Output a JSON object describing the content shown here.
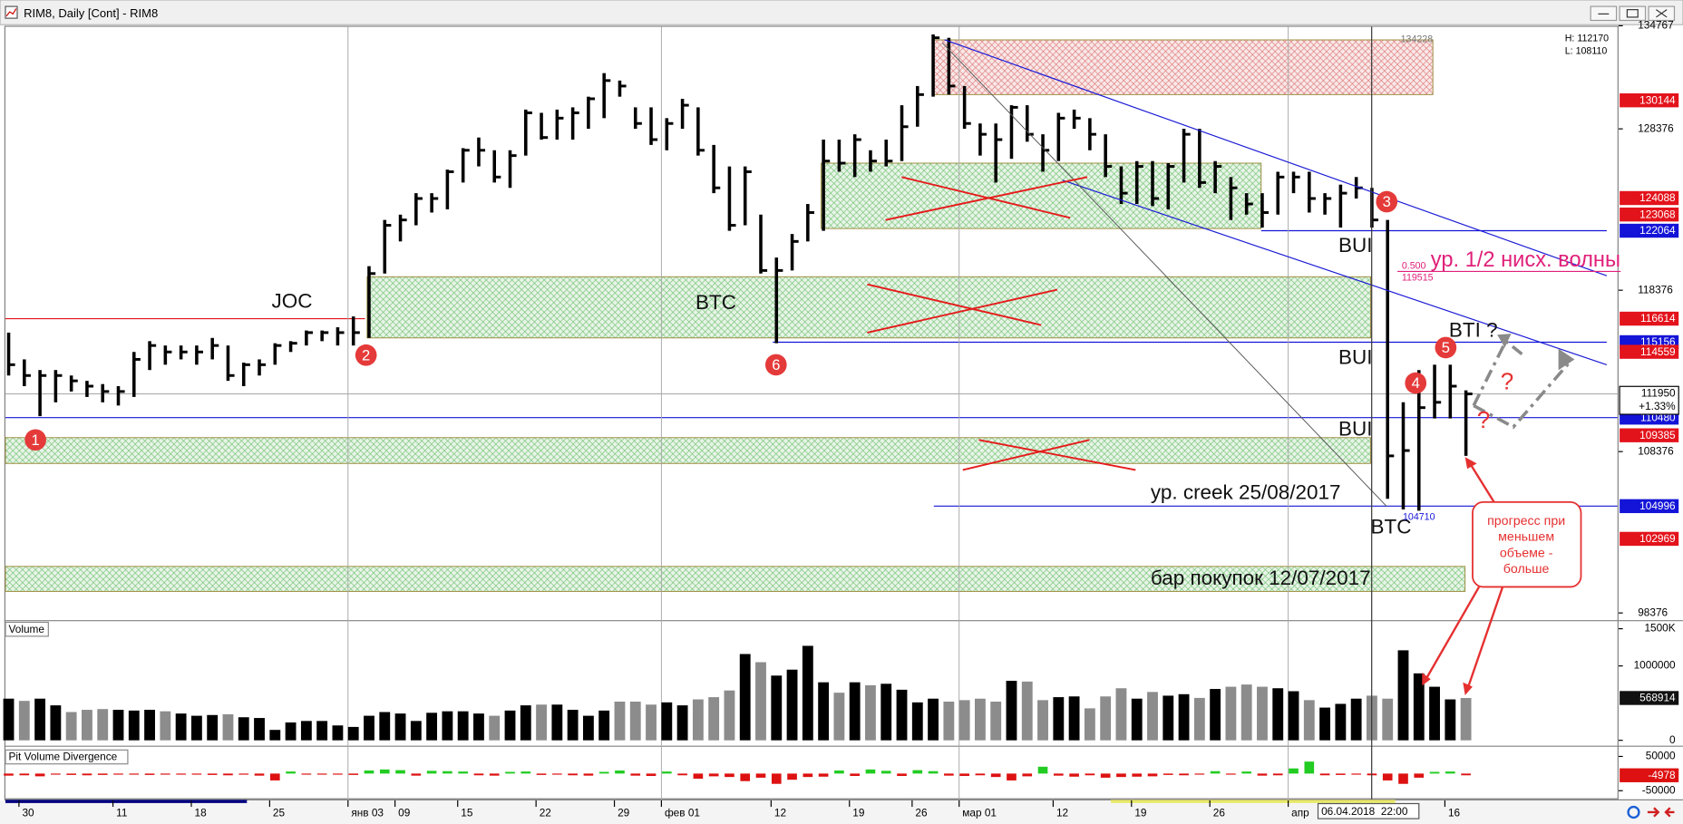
{
  "window_title": "RIM8, Daily [Cont] - RIM8",
  "cursor_time": "06.04.2018  22:00",
  "chart_data": [
    {
      "type": "ohlc",
      "categories": [
        null,
        "30",
        null,
        null,
        null,
        null,
        null,
        "11",
        null,
        null,
        null,
        null,
        "18",
        null,
        null,
        null,
        null,
        "25",
        null,
        null,
        null,
        null,
        "янв 03",
        null,
        null,
        "09",
        null,
        null,
        null,
        "15",
        null,
        null,
        null,
        null,
        "22",
        null,
        null,
        null,
        null,
        "29",
        null,
        null,
        "фев 01",
        null,
        null,
        null,
        null,
        null,
        null,
        "12",
        null,
        null,
        null,
        null,
        "19",
        null,
        null,
        null,
        "26",
        null,
        null,
        "мар 01",
        null,
        null,
        null,
        null,
        null,
        "12",
        null,
        null,
        null,
        null,
        "19",
        null,
        null,
        null,
        null,
        "26",
        null,
        null,
        null,
        null,
        "апр",
        null,
        null,
        null,
        null,
        null,
        null,
        null,
        null,
        null,
        "16",
        null
      ],
      "high": [
        115750,
        114090,
        113430,
        113430,
        113090,
        112760,
        112560,
        112430,
        114550,
        115220,
        114950,
        114950,
        114950,
        115420,
        114950,
        113890,
        114090,
        115090,
        115220,
        115880,
        115880,
        116080,
        116750,
        119870,
        122730,
        123060,
        124390,
        124390,
        125850,
        127180,
        127840,
        127050,
        127050,
        129570,
        129370,
        129570,
        129710,
        130370,
        131830,
        131370,
        129710,
        129710,
        129040,
        130240,
        129710,
        127380,
        126050,
        126050,
        123060,
        120400,
        121860,
        123720,
        127710,
        127710,
        128040,
        127050,
        127710,
        129840,
        131030,
        134228,
        134020,
        131030,
        128710,
        128710,
        129840,
        129840,
        128040,
        129370,
        129570,
        129040,
        128040,
        126050,
        126380,
        126380,
        126250,
        128380,
        128380,
        126380,
        125390,
        124390,
        124390,
        125720,
        125720,
        125720,
        124390,
        124920,
        125390,
        124720,
        122730,
        111430,
        113430,
        113760,
        113760,
        112170
      ],
      "low": [
        113090,
        112430,
        110570,
        111430,
        112100,
        111760,
        111430,
        111230,
        111760,
        113430,
        113760,
        114090,
        113760,
        114090,
        112760,
        112430,
        113090,
        113760,
        114550,
        114950,
        115220,
        114950,
        114950,
        115420,
        119410,
        121400,
        122400,
        123190,
        123390,
        125050,
        126050,
        125050,
        124720,
        126720,
        127710,
        127710,
        127710,
        128380,
        129040,
        130370,
        128380,
        127380,
        127050,
        128380,
        126720,
        124390,
        122060,
        122400,
        119410,
        115090,
        119600,
        121400,
        122060,
        125720,
        125390,
        125720,
        126050,
        126380,
        128510,
        130370,
        130500,
        128380,
        126720,
        125050,
        126520,
        127580,
        125720,
        126380,
        128380,
        127050,
        125390,
        123720,
        123720,
        123590,
        123390,
        125050,
        124720,
        124390,
        122730,
        123060,
        122260,
        123060,
        124390,
        123190,
        123060,
        122260,
        124060,
        122260,
        105450,
        104790,
        104710,
        110430,
        110430,
        108110
      ],
      "close": [
        113760,
        113090,
        113090,
        113090,
        112760,
        112430,
        112100,
        112100,
        114090,
        114950,
        114550,
        114550,
        114550,
        114950,
        113090,
        113760,
        113760,
        114950,
        115090,
        115750,
        115750,
        115750,
        115750,
        119410,
        122400,
        122730,
        124060,
        124060,
        125720,
        127050,
        127050,
        125390,
        126720,
        129370,
        127840,
        129040,
        129370,
        130240,
        131370,
        131030,
        128710,
        127710,
        128710,
        129840,
        127050,
        124720,
        122400,
        125720,
        119600,
        119600,
        121400,
        123190,
        126380,
        126250,
        127710,
        126380,
        126380,
        128510,
        130500,
        134020,
        131030,
        128710,
        128040,
        127710,
        129710,
        128040,
        127050,
        129040,
        129040,
        128040,
        126050,
        124390,
        126050,
        124060,
        126050,
        128040,
        125050,
        126050,
        124720,
        123720,
        123190,
        125390,
        125390,
        124060,
        124060,
        124390,
        124720,
        122730,
        108110,
        108440,
        111100,
        111430,
        112430,
        111950
      ],
      "color": "#000000",
      "ylim": [
        97930,
        134700
      ],
      "yticks": [
        98376,
        108376,
        118376,
        128376,
        134767
      ],
      "price_levels": [
        {
          "value": 130144,
          "color": "#e3131b"
        },
        {
          "value": 124088,
          "color": "#e3131b"
        },
        {
          "value": 123068,
          "color": "#e3131b"
        },
        {
          "value": 122064,
          "color": "#1414d8"
        },
        {
          "value": 116614,
          "color": "#e3131b"
        },
        {
          "value": 115156,
          "color": "#1414d8"
        },
        {
          "value": 114559,
          "color": "#e3131b"
        },
        {
          "value": 110480,
          "color": "#1414d8"
        },
        {
          "value": 109385,
          "color": "#e3131b"
        },
        {
          "value": 104996,
          "color": "#1414d8"
        },
        {
          "value": 102969,
          "color": "#e3131b"
        }
      ],
      "zones": [
        {
          "high": 133890,
          "low": 130500,
          "color": "#d04040"
        },
        {
          "high": 126250,
          "low": 122200,
          "color": "#3aa83a"
        },
        {
          "high": 119210,
          "low": 115420,
          "color": "#3aa83a"
        },
        {
          "high": 109240,
          "low": 107640,
          "color": "#3aa83a"
        },
        {
          "high": 101260,
          "low": 99710,
          "color": "#3aa83a"
        }
      ],
      "change": "+1.33%",
      "hl_box": [
        "H: 112170",
        "L: 108110"
      ],
      "fib": [
        "0.500",
        "119515"
      ],
      "points": [
        "1",
        "2",
        "3",
        "4",
        "5",
        "6"
      ],
      "annotations": [
        "JOC",
        "BTC",
        "BTC",
        "BUI",
        "BUI",
        "BUI",
        "BTI ?",
        "ур. 1/2 нисх. волны",
        "ур. creek 25/08/2017",
        "бар покупок 12/07/2017",
        "?",
        "?"
      ],
      "callout": [
        "прогресс при",
        "меньшем",
        "объеме -",
        "больше"
      ]
    },
    {
      "type": "bar",
      "title": "Volume",
      "values": [
        560000,
        530000,
        560000,
        470000,
        380000,
        410000,
        420000,
        410000,
        400000,
        410000,
        390000,
        360000,
        330000,
        340000,
        350000,
        310000,
        300000,
        140000,
        240000,
        260000,
        260000,
        200000,
        180000,
        330000,
        380000,
        360000,
        260000,
        370000,
        390000,
        390000,
        360000,
        330000,
        400000,
        470000,
        480000,
        480000,
        410000,
        330000,
        400000,
        520000,
        520000,
        480000,
        510000,
        470000,
        550000,
        580000,
        670000,
        1160000,
        1050000,
        870000,
        950000,
        1270000,
        780000,
        640000,
        780000,
        740000,
        760000,
        680000,
        510000,
        560000,
        520000,
        540000,
        560000,
        520000,
        800000,
        790000,
        540000,
        580000,
        590000,
        430000,
        590000,
        700000,
        560000,
        650000,
        600000,
        620000,
        570000,
        690000,
        720000,
        750000,
        720000,
        700000,
        660000,
        540000,
        440000,
        490000,
        560000,
        600000,
        560000,
        1210000,
        900000,
        720000,
        550000,
        568914
      ],
      "colors": {
        "up": "#000000",
        "down": "#8c8c8c"
      },
      "ylim": [
        0,
        1500000
      ],
      "yticks": [
        {
          "value": 1500000,
          "label": "1500K"
        },
        1000000,
        0
      ]
    },
    {
      "type": "bar",
      "title": "Pit Volume Divergence",
      "values": [
        -6000,
        -5000,
        -8000,
        -3000,
        -4000,
        -5000,
        -4000,
        -3000,
        -2000,
        -4000,
        -2000,
        -3000,
        -2000,
        -4000,
        -5000,
        -3000,
        -6000,
        -20000,
        6000,
        -3000,
        -2000,
        -2000,
        -4000,
        9000,
        12000,
        10000,
        -6000,
        8000,
        7000,
        6000,
        -5000,
        -6000,
        5000,
        6000,
        -4000,
        -3000,
        -5000,
        -6000,
        5000,
        9000,
        -6000,
        -7000,
        6000,
        -5000,
        -15000,
        -8000,
        -10000,
        -22000,
        -12000,
        -30000,
        -18000,
        -10000,
        -9000,
        9000,
        -7000,
        12000,
        8000,
        -7000,
        10000,
        7000,
        -6000,
        -7000,
        -5000,
        -10000,
        -20000,
        -8000,
        20000,
        -6000,
        -9000,
        -5000,
        -12000,
        -10000,
        -9000,
        -8000,
        -4000,
        -5000,
        -3000,
        7000,
        -3000,
        6000,
        -6000,
        -5000,
        15000,
        35000,
        -5000,
        -4000,
        -3000,
        -5000,
        -20000,
        -30000,
        -12000,
        5000,
        6000,
        -4978
      ],
      "colors": {
        "up": "#22cc22",
        "down": "#dd1111"
      },
      "ylim": [
        -72000,
        72000
      ],
      "yticks": [
        50000,
        -50000
      ]
    }
  ]
}
